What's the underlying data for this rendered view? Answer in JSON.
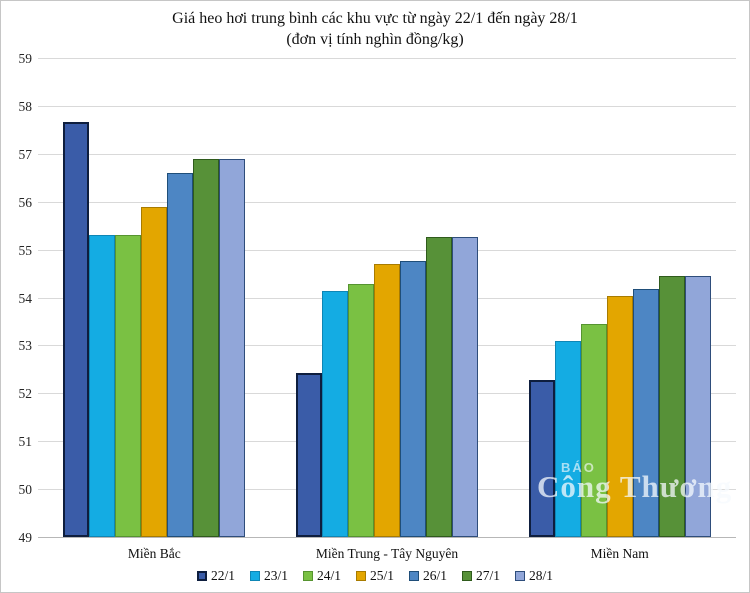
{
  "title_line1": "Giá heo hơi trung bình các khu vực từ ngày 22/1 đến ngày 28/1",
  "title_line2": "(đơn vị tính nghìn đồng/kg)",
  "watermark": {
    "small": "BÁO",
    "large": "Công Thương"
  },
  "chart_data": {
    "type": "bar",
    "title": "Giá heo hơi trung bình các khu vực từ ngày 22/1 đến ngày 28/1",
    "subtitle": "(đơn vị tính nghìn đồng/kg)",
    "unit": "nghìn đồng/kg",
    "categories": [
      "Miền Bắc",
      "Miền Trung - Tây Nguyên",
      "Miền Nam"
    ],
    "series": [
      {
        "name": "22/1",
        "color": "#3A5CA8",
        "border": "#0E1E3E",
        "border_width": 2,
        "values": [
          57.67,
          52.43,
          52.27
        ]
      },
      {
        "name": "23/1",
        "color": "#14ACE3",
        "border": "#0E86B5",
        "border_width": 1,
        "values": [
          55.3,
          54.14,
          53.1
        ]
      },
      {
        "name": "24/1",
        "color": "#7AC143",
        "border": "#569430",
        "border_width": 1,
        "values": [
          55.3,
          54.28,
          53.45
        ]
      },
      {
        "name": "25/1",
        "color": "#E3A600",
        "border": "#A87B00",
        "border_width": 1,
        "values": [
          55.9,
          54.7,
          54.04
        ]
      },
      {
        "name": "26/1",
        "color": "#4D86C4",
        "border": "#1F4E79",
        "border_width": 1,
        "values": [
          56.6,
          54.76,
          54.18
        ]
      },
      {
        "name": "27/1",
        "color": "#579138",
        "border": "#2F5B1C",
        "border_width": 1,
        "values": [
          56.9,
          55.27,
          54.45
        ]
      },
      {
        "name": "28/1",
        "color": "#91A6D9",
        "border": "#2E4D7B",
        "border_width": 1,
        "values": [
          56.9,
          55.27,
          54.45
        ]
      }
    ],
    "ylim": [
      49,
      59
    ],
    "ytick_step": 1,
    "yticks": [
      49,
      50,
      51,
      52,
      53,
      54,
      55,
      56,
      57,
      58,
      59
    ],
    "grid": true,
    "legend_position": "bottom"
  }
}
